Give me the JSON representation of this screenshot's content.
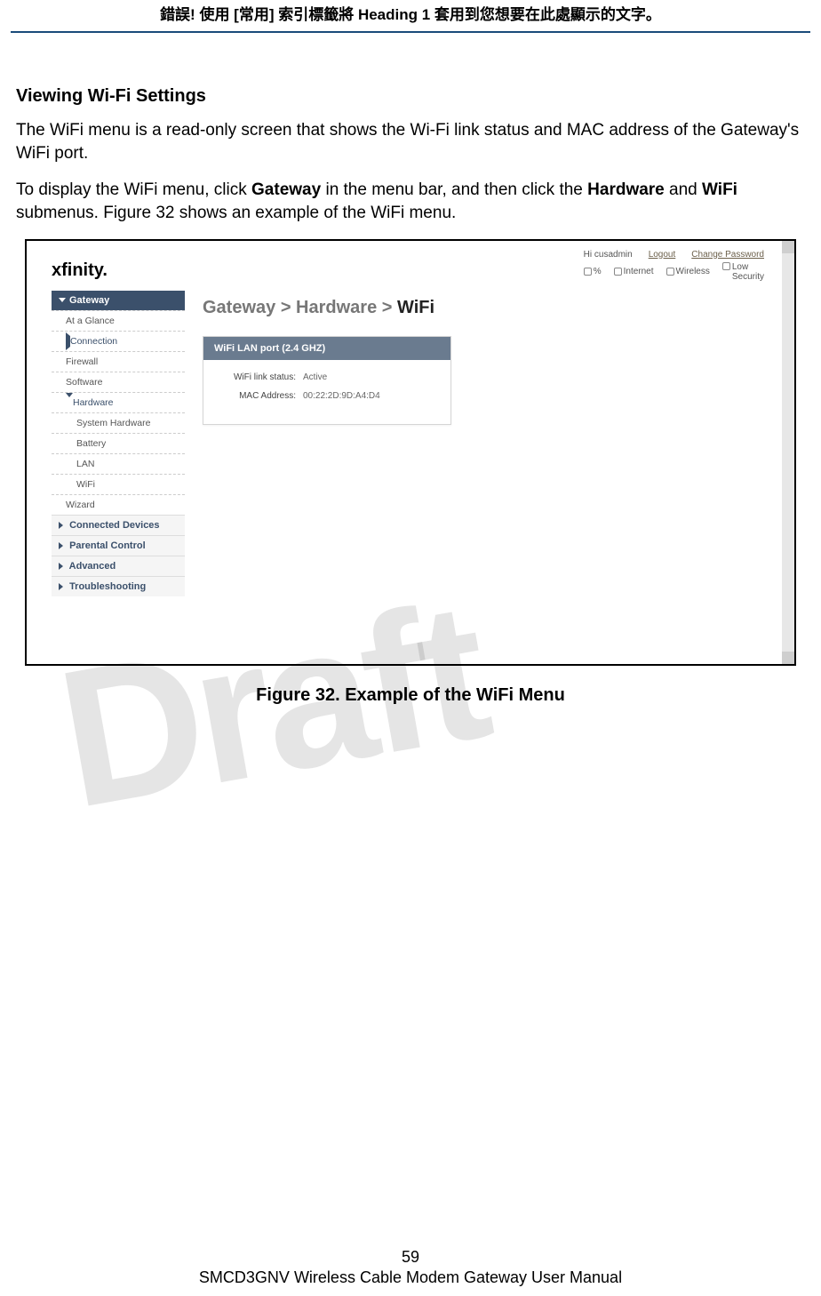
{
  "header": {
    "text_pre": "錯誤! 使用 [常用] 索引標籤將 ",
    "text_bold": "Heading 1",
    "text_post": " 套用到您想要在此處顯示的文字。"
  },
  "section": {
    "title": "Viewing Wi-Fi Settings",
    "p1": "The WiFi menu is a read-only screen that shows the Wi-Fi link status and MAC address of the Gateway's WiFi port.",
    "p2_a": "To display the WiFi menu, click ",
    "p2_b": "Gateway",
    "p2_c": " in the menu bar, and then click the ",
    "p2_d": "Hardware",
    "p2_e": " and ",
    "p2_f": "WiFi",
    "p2_g": " submenus. Figure 32 shows an example of the WiFi menu."
  },
  "screenshot": {
    "logo": "xfinity.",
    "top": {
      "greet": "Hi cusadmin",
      "logout": "Logout",
      "chpw": "Change Password",
      "percent": "%",
      "internet": "Internet",
      "wireless": "Wireless",
      "security_a": "Low",
      "security_b": "Security"
    },
    "sidebar": {
      "gateway": "Gateway",
      "at_glance": "At a Glance",
      "connection": "Connection",
      "firewall": "Firewall",
      "software": "Software",
      "hardware": "Hardware",
      "system_hw": "System Hardware",
      "battery": "Battery",
      "lan": "LAN",
      "wifi": "WiFi",
      "wizard": "Wizard",
      "connd": "Connected Devices",
      "parental": "Parental Control",
      "advanced": "Advanced",
      "trouble": "Troubleshooting"
    },
    "breadcrumb": {
      "a": "Gateway > Hardware > ",
      "b": "WiFi"
    },
    "panel": {
      "title": "WiFi LAN port (2.4 GHZ)",
      "k1": "WiFi link status:",
      "v1": "Active",
      "k2": "MAC Address:",
      "v2": "00:22:2D:9D:A4:D4"
    }
  },
  "figure_caption": "Figure 32. Example of the WiFi Menu",
  "watermark": "Draft",
  "footer": {
    "page": "59",
    "manual": "SMCD3GNV Wireless Cable Modem Gateway User Manual"
  }
}
